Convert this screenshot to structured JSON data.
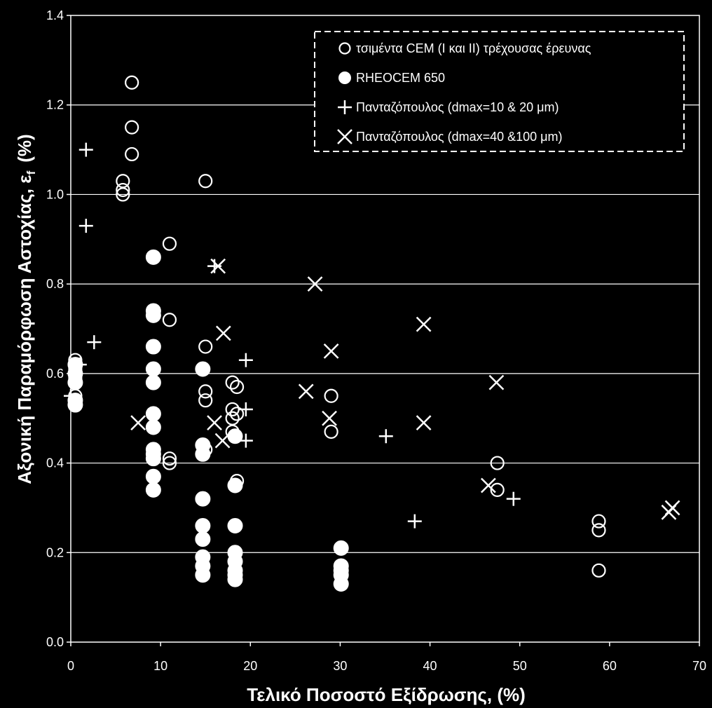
{
  "chart_data": {
    "type": "scatter",
    "xlabel": "Τελικό  Ποσοστό  Εξίδρωσης, (%)",
    "ylabel_main": "Αξονική  Παραμόρφωση  Αστοχίας,  ε",
    "ylabel_sub": "f",
    "ylabel_unit": "(%)",
    "xlim": [
      0,
      70
    ],
    "ylim": [
      0,
      1.4
    ],
    "x_ticks": [
      "0",
      "10",
      "20",
      "30",
      "40",
      "50",
      "60",
      "70"
    ],
    "y_ticks": [
      "0.0",
      "0.2",
      "0.4",
      "0.6",
      "0.8",
      "1.0",
      "1.2",
      "1.4"
    ],
    "grid": "horizontal",
    "legend_position": "top-right",
    "colors": {
      "background": "#000000",
      "foreground": "#ffffff"
    },
    "series": [
      {
        "name": "τσιμέντα CEM (I και II) τρέχουσας έρευνας",
        "marker": "open-circle",
        "points": [
          [
            0.5,
            0.63
          ],
          [
            0.5,
            0.61
          ],
          [
            0.5,
            0.59
          ],
          [
            0.5,
            0.55
          ],
          [
            5.8,
            1.03
          ],
          [
            5.8,
            1.01
          ],
          [
            5.8,
            1.0
          ],
          [
            6.8,
            1.25
          ],
          [
            6.8,
            1.15
          ],
          [
            6.8,
            1.09
          ],
          [
            11.0,
            0.89
          ],
          [
            11.0,
            0.72
          ],
          [
            11.0,
            0.41
          ],
          [
            11.0,
            0.4
          ],
          [
            15.0,
            1.03
          ],
          [
            15.0,
            0.66
          ],
          [
            15.0,
            0.56
          ],
          [
            15.0,
            0.54
          ],
          [
            15.0,
            0.43
          ],
          [
            18.0,
            0.58
          ],
          [
            18.0,
            0.52
          ],
          [
            18.0,
            0.5
          ],
          [
            18.0,
            0.47
          ],
          [
            18.5,
            0.57
          ],
          [
            18.5,
            0.51
          ],
          [
            18.5,
            0.36
          ],
          [
            29.0,
            0.55
          ],
          [
            29.0,
            0.47
          ],
          [
            47.5,
            0.4
          ],
          [
            47.5,
            0.34
          ],
          [
            58.8,
            0.27
          ],
          [
            58.8,
            0.25
          ],
          [
            58.8,
            0.16
          ]
        ]
      },
      {
        "name": "RHEOCEM 650",
        "marker": "filled-circle",
        "points": [
          [
            0.5,
            0.62
          ],
          [
            0.5,
            0.6
          ],
          [
            0.5,
            0.58
          ],
          [
            0.5,
            0.54
          ],
          [
            0.5,
            0.53
          ],
          [
            9.2,
            0.86
          ],
          [
            9.2,
            0.74
          ],
          [
            9.2,
            0.73
          ],
          [
            9.2,
            0.66
          ],
          [
            9.2,
            0.61
          ],
          [
            9.2,
            0.58
          ],
          [
            9.2,
            0.51
          ],
          [
            9.2,
            0.48
          ],
          [
            9.2,
            0.43
          ],
          [
            9.2,
            0.42
          ],
          [
            9.2,
            0.41
          ],
          [
            9.2,
            0.37
          ],
          [
            9.2,
            0.34
          ],
          [
            14.7,
            0.61
          ],
          [
            14.7,
            0.44
          ],
          [
            14.7,
            0.42
          ],
          [
            14.7,
            0.32
          ],
          [
            14.7,
            0.26
          ],
          [
            14.7,
            0.23
          ],
          [
            14.7,
            0.19
          ],
          [
            14.7,
            0.17
          ],
          [
            14.7,
            0.15
          ],
          [
            18.3,
            0.46
          ],
          [
            18.3,
            0.35
          ],
          [
            18.3,
            0.26
          ],
          [
            18.3,
            0.2
          ],
          [
            18.3,
            0.18
          ],
          [
            18.3,
            0.16
          ],
          [
            18.3,
            0.15
          ],
          [
            18.3,
            0.14
          ],
          [
            30.1,
            0.21
          ],
          [
            30.1,
            0.17
          ],
          [
            30.1,
            0.16
          ],
          [
            30.1,
            0.15
          ],
          [
            30.1,
            0.13
          ]
        ]
      },
      {
        "name": "Πανταζόπουλος (dmax=10 & 20 μm)",
        "marker": "plus",
        "points": [
          [
            1.7,
            1.1
          ],
          [
            1.7,
            0.93
          ],
          [
            2.6,
            0.67
          ],
          [
            1.0,
            0.62
          ],
          [
            0.0,
            0.55
          ],
          [
            16.0,
            0.84
          ],
          [
            19.5,
            0.63
          ],
          [
            19.5,
            0.52
          ],
          [
            19.5,
            0.45
          ],
          [
            35.1,
            0.46
          ],
          [
            38.3,
            0.27
          ],
          [
            49.3,
            0.32
          ]
        ]
      },
      {
        "name": "Πανταζόπουλος (dmax=40 &100 μm)",
        "marker": "cross",
        "points": [
          [
            7.5,
            0.49
          ],
          [
            16.4,
            0.84
          ],
          [
            17.0,
            0.69
          ],
          [
            16.0,
            0.49
          ],
          [
            16.9,
            0.45
          ],
          [
            27.2,
            0.8
          ],
          [
            26.2,
            0.56
          ],
          [
            29.0,
            0.65
          ],
          [
            28.8,
            0.5
          ],
          [
            39.3,
            0.71
          ],
          [
            39.3,
            0.49
          ],
          [
            47.4,
            0.58
          ],
          [
            46.5,
            0.35
          ],
          [
            67.0,
            0.3
          ],
          [
            66.6,
            0.29
          ]
        ]
      }
    ]
  }
}
